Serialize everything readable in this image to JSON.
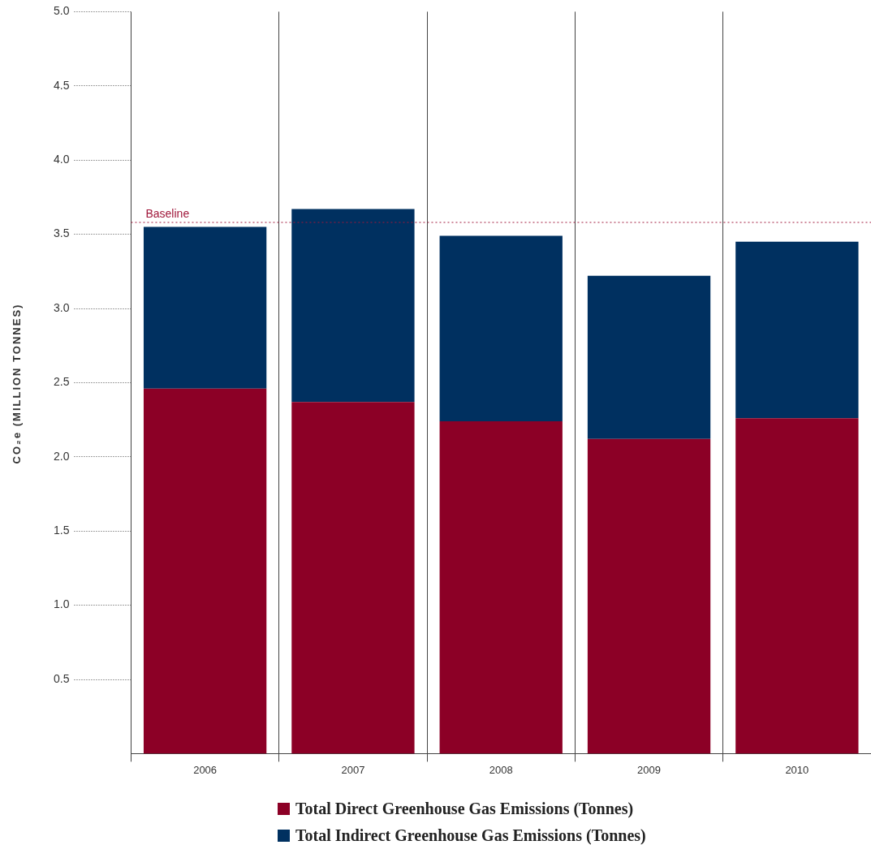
{
  "chart_data": {
    "type": "bar",
    "stacked": true,
    "ylabel": "CO₂e (MILLION TONNES)",
    "categories": [
      "2006",
      "2007",
      "2008",
      "2009",
      "2010"
    ],
    "series": [
      {
        "name": "Total Direct Greenhouse Gas Emissions (Tonnes)",
        "color": "#8c0026",
        "values": [
          2.46,
          2.37,
          2.24,
          2.12,
          2.26
        ]
      },
      {
        "name": "Total Indirect Greenhouse Gas Emissions (Tonnes)",
        "color": "#003060",
        "values": [
          1.09,
          1.3,
          1.25,
          1.1,
          1.19
        ]
      }
    ],
    "ylim": [
      0,
      5
    ],
    "yticks": [
      {
        "value": 0.5,
        "label": "0.5"
      },
      {
        "value": 1,
        "label": "1.0"
      },
      {
        "value": 1.5,
        "label": "1.5"
      },
      {
        "value": 2,
        "label": "2.0"
      },
      {
        "value": 2.5,
        "label": "2.5"
      },
      {
        "value": 3,
        "label": "3.0"
      },
      {
        "value": 3.5,
        "label": "3.5"
      },
      {
        "value": 4,
        "label": "4.0"
      },
      {
        "value": 4.5,
        "label": "4.5"
      },
      {
        "value": 5,
        "label": "5.0"
      }
    ],
    "ref_lines": [
      {
        "axis": "y",
        "value": 3.58,
        "label": "Baseline",
        "color": "#a0173a",
        "line_style": "dotted"
      }
    ],
    "grid": "x",
    "legend": "bottom"
  }
}
